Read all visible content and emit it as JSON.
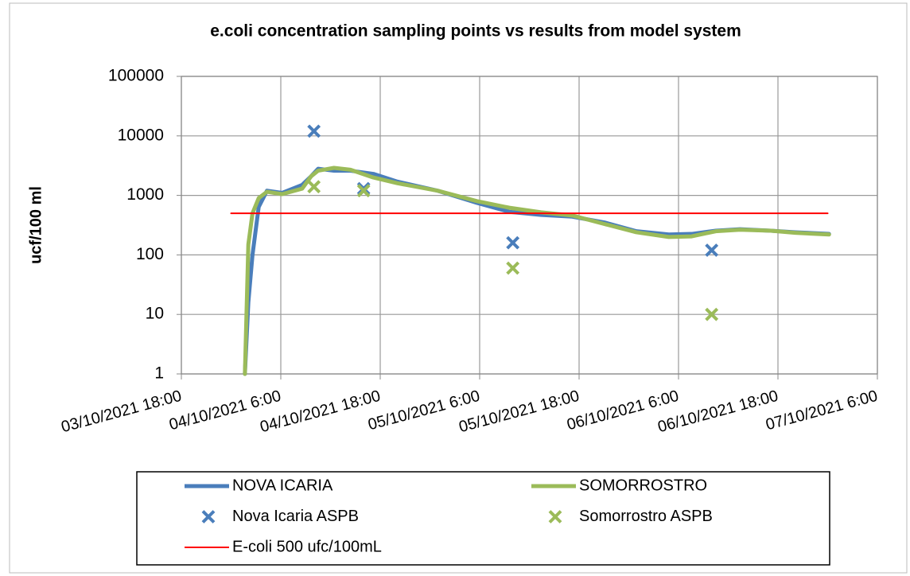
{
  "chart_data": {
    "type": "line",
    "title": "e.coli concentration sampling points vs results from model system",
    "y_label": "ucf/100 ml",
    "yscale": "log",
    "ylim": [
      1,
      100000
    ],
    "yticks": [
      1,
      10,
      100,
      1000,
      10000,
      100000
    ],
    "xlim": [
      "03/10/2021 18:00",
      "07/10/2021 06:00"
    ],
    "xticks": [
      "03/10/2021 18:00",
      "04/10/2021 6:00",
      "04/10/2021 18:00",
      "05/10/2021 6:00",
      "05/10/2021 18:00",
      "06/10/2021 6:00",
      "06/10/2021 18:00",
      "07/10/2021 6:00"
    ],
    "grid": true,
    "legend": "bottom",
    "series": [
      {
        "name": "NOVA ICARIA",
        "type": "line",
        "color": "#4a7ebb",
        "x": [
          "04/10/2021 01:40",
          "04/10/2021 02:05",
          "04/10/2021 02:35",
          "04/10/2021 03:20",
          "04/10/2021 04:20",
          "04/10/2021 06:10",
          "04/10/2021 08:35",
          "04/10/2021 09:40",
          "04/10/2021 10:30",
          "04/10/2021 12:25",
          "04/10/2021 14:25",
          "04/10/2021 17:10",
          "04/10/2021 20:05",
          "05/10/2021 00:55",
          "05/10/2021 05:40",
          "05/10/2021 09:35",
          "05/10/2021 13:25",
          "05/10/2021 17:10",
          "05/10/2021 21:05",
          "06/10/2021 00:55",
          "06/10/2021 04:50",
          "06/10/2021 07:35",
          "06/10/2021 10:30",
          "06/10/2021 13:25",
          "06/10/2021 17:10",
          "06/10/2021 20:05",
          "07/10/2021 00:10"
        ],
        "values": [
          1,
          16,
          100,
          640,
          1200,
          1100,
          1500,
          2100,
          2800,
          2600,
          2600,
          2300,
          1700,
          1200,
          750,
          530,
          470,
          440,
          350,
          250,
          220,
          225,
          255,
          270,
          255,
          240,
          225
        ]
      },
      {
        "name": "SOMORROSTRO",
        "type": "line",
        "color": "#9bbb59",
        "x": [
          "04/10/2021 01:40",
          "04/10/2021 02:05",
          "04/10/2021 02:35",
          "04/10/2021 03:20",
          "04/10/2021 04:20",
          "04/10/2021 06:10",
          "04/10/2021 08:35",
          "04/10/2021 09:40",
          "04/10/2021 10:30",
          "04/10/2021 12:25",
          "04/10/2021 14:25",
          "04/10/2021 17:10",
          "04/10/2021 20:05",
          "05/10/2021 00:55",
          "05/10/2021 05:40",
          "05/10/2021 09:35",
          "05/10/2021 13:25",
          "05/10/2021 17:10",
          "05/10/2021 21:05",
          "06/10/2021 00:55",
          "06/10/2021 04:50",
          "06/10/2021 07:35",
          "06/10/2021 10:30",
          "06/10/2021 13:25",
          "06/10/2021 17:10",
          "06/10/2021 20:05",
          "07/10/2021 00:10"
        ],
        "values": [
          1,
          150,
          500,
          900,
          1150,
          1050,
          1300,
          2100,
          2600,
          2900,
          2700,
          2000,
          1600,
          1200,
          800,
          620,
          520,
          460,
          330,
          240,
          200,
          205,
          250,
          265,
          255,
          235,
          220
        ]
      },
      {
        "name": "Nova Icaria ASPB",
        "type": "scatter",
        "marker": "x",
        "color": "#4a7ebb",
        "x": [
          "04/10/2021 10:00",
          "04/10/2021 16:00",
          "05/10/2021 10:00",
          "06/10/2021 10:00"
        ],
        "values": [
          12000,
          1300,
          160,
          120
        ]
      },
      {
        "name": "Somorrostro ASPB",
        "type": "scatter",
        "marker": "x",
        "color": "#9bbb59",
        "x": [
          "04/10/2021 10:00",
          "04/10/2021 16:00",
          "05/10/2021 10:00",
          "06/10/2021 10:00"
        ],
        "values": [
          1400,
          1200,
          60,
          10
        ]
      },
      {
        "name": "E-coli 500 ufc/100mL",
        "type": "line",
        "thin": true,
        "color": "#ff0000",
        "x": [
          "04/10/2021 00:00",
          "07/10/2021 00:00"
        ],
        "values": [
          500,
          500
        ]
      }
    ]
  }
}
